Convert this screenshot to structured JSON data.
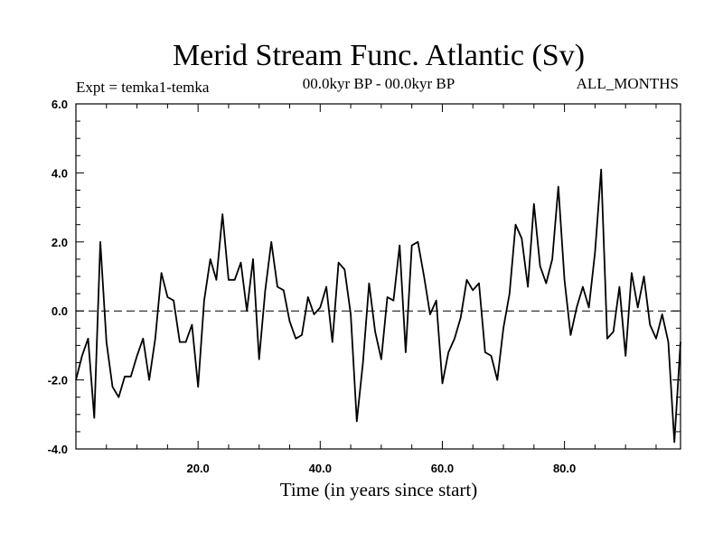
{
  "chart_data": {
    "type": "line",
    "title": "Merid Stream Func. Atlantic (Sv)",
    "subtitle_left": "Expt = temka1-temka",
    "subtitle_center": "00.0kyr BP - 00.0kyr BP",
    "subtitle_right": "ALL_MONTHS",
    "xlabel": "Time (in years since start)",
    "ylabel": "",
    "xlim": [
      0,
      99
    ],
    "ylim": [
      -4.0,
      6.0
    ],
    "x_ticks": [
      20,
      40,
      60,
      80
    ],
    "x_tick_labels": [
      "20.0",
      "40.0",
      "60.0",
      "80.0"
    ],
    "y_ticks": [
      -4,
      -2,
      0,
      2,
      4,
      6
    ],
    "y_tick_labels": [
      "-4.0",
      "-2.0",
      "0.0",
      "2.0",
      "4.0",
      "6.0"
    ],
    "reference_line": 0.0,
    "x": [
      0,
      1,
      2,
      3,
      4,
      5,
      6,
      7,
      8,
      9,
      10,
      11,
      12,
      13,
      14,
      15,
      16,
      17,
      18,
      19,
      20,
      21,
      22,
      23,
      24,
      25,
      26,
      27,
      28,
      29,
      30,
      31,
      32,
      33,
      34,
      35,
      36,
      37,
      38,
      39,
      40,
      41,
      42,
      43,
      44,
      45,
      46,
      47,
      48,
      49,
      50,
      51,
      52,
      53,
      54,
      55,
      56,
      57,
      58,
      59,
      60,
      61,
      62,
      63,
      64,
      65,
      66,
      67,
      68,
      69,
      70,
      71,
      72,
      73,
      74,
      75,
      76,
      77,
      78,
      79,
      80,
      81,
      82,
      83,
      84,
      85,
      86,
      87,
      88,
      89,
      90,
      91,
      92,
      93,
      94,
      95,
      96,
      97,
      98,
      99
    ],
    "values": [
      -2.0,
      -1.3,
      -0.8,
      -3.1,
      2.0,
      -0.9,
      -2.2,
      -2.5,
      -1.9,
      -1.9,
      -1.3,
      -0.8,
      -2.0,
      -0.8,
      1.1,
      0.4,
      0.3,
      -0.9,
      -0.9,
      -0.4,
      -2.2,
      0.3,
      1.5,
      0.9,
      2.8,
      0.9,
      0.9,
      1.4,
      0.0,
      1.5,
      -1.4,
      0.6,
      2.0,
      0.7,
      0.6,
      -0.3,
      -0.8,
      -0.7,
      0.4,
      -0.1,
      0.1,
      0.7,
      -0.9,
      1.4,
      1.2,
      -0.1,
      -3.2,
      -1.5,
      0.8,
      -0.6,
      -1.4,
      0.4,
      0.3,
      1.9,
      -1.2,
      1.9,
      2.0,
      1.0,
      -0.1,
      0.3,
      -2.1,
      -1.2,
      -0.8,
      -0.2,
      0.9,
      0.6,
      0.8,
      -1.2,
      -1.3,
      -2.0,
      -0.5,
      0.5,
      2.5,
      2.1,
      0.7,
      3.1,
      1.3,
      0.8,
      1.5,
      3.6,
      0.9,
      -0.7,
      0.1,
      0.7,
      0.1,
      1.7,
      4.1,
      -0.8,
      -0.6,
      0.7,
      -1.3,
      1.1,
      0.1,
      1.0,
      -0.4,
      -0.8,
      -0.1,
      -0.9,
      -3.8,
      -0.9
    ]
  }
}
